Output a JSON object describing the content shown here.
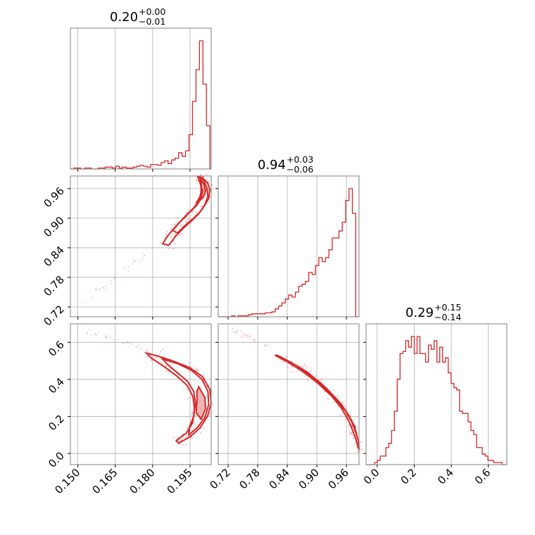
{
  "chart_data": {
    "type": "corner",
    "line_color": "#d62728",
    "grid": true,
    "parameters": [
      {
        "median": "0.20",
        "plus": "+0.00",
        "minus": "−0.01",
        "range": [
          0.147,
          0.2035
        ],
        "ticks": [
          0.15,
          0.165,
          0.18,
          0.195
        ],
        "tick_labels": [
          "0.150",
          "0.165",
          "0.180",
          "0.195"
        ]
      },
      {
        "median": "0.94",
        "plus": "+0.03",
        "minus": "−0.06",
        "range": [
          0.7,
          0.9855
        ],
        "ticks": [
          0.72,
          0.78,
          0.84,
          0.9,
          0.96
        ],
        "tick_labels": [
          "0.72",
          "0.78",
          "0.84",
          "0.90",
          "0.96"
        ]
      },
      {
        "median": "0.29",
        "plus": "+0.15",
        "minus": "−0.14",
        "range": [
          -0.06,
          0.7
        ],
        "ticks": [
          0.0,
          0.2,
          0.4,
          0.6
        ],
        "tick_labels": [
          "0.0",
          "0.2",
          "0.4",
          "0.6"
        ]
      }
    ],
    "histograms": [
      {
        "param": 0,
        "bin_edges": [
          0.147,
          0.1484,
          0.1498,
          0.1512,
          0.1526,
          0.154,
          0.1554,
          0.1568,
          0.1582,
          0.1596,
          0.161,
          0.1624,
          0.1638,
          0.1652,
          0.1666,
          0.168,
          0.1694,
          0.1708,
          0.1722,
          0.1736,
          0.175,
          0.1764,
          0.1778,
          0.1792,
          0.1806,
          0.182,
          0.1834,
          0.1848,
          0.1862,
          0.1876,
          0.189,
          0.1904,
          0.1918,
          0.1932,
          0.1946,
          0.196,
          0.1974,
          0.1988,
          0.2002,
          0.2016,
          0.203,
          0.2035
        ],
        "counts": [
          0,
          1,
          1,
          0,
          1,
          1,
          0,
          0,
          1,
          1,
          2,
          2,
          1,
          3,
          1,
          2,
          1,
          1,
          2,
          3,
          4,
          3,
          2,
          5,
          5,
          4,
          7,
          9,
          6,
          10,
          12,
          18,
          14,
          20,
          38,
          75,
          110,
          142,
          94,
          48,
          0
        ]
      },
      {
        "param": 1,
        "bin_edges": [
          0.7,
          0.7068,
          0.7136,
          0.7204,
          0.7272,
          0.734,
          0.7408,
          0.7476,
          0.7544,
          0.7612,
          0.768,
          0.7748,
          0.7816,
          0.7884,
          0.7952,
          0.802,
          0.8088,
          0.8156,
          0.8224,
          0.8292,
          0.836,
          0.8428,
          0.8496,
          0.8564,
          0.8632,
          0.87,
          0.8768,
          0.8836,
          0.8904,
          0.8972,
          0.904,
          0.9108,
          0.9176,
          0.9244,
          0.9312,
          0.938,
          0.9448,
          0.9516,
          0.9584,
          0.9652,
          0.972,
          0.9788,
          0.9855
        ],
        "counts": [
          0,
          0,
          0,
          0,
          1,
          0,
          1,
          1,
          1,
          2,
          3,
          3,
          3,
          3,
          4,
          4,
          5,
          8,
          11,
          14,
          18,
          22,
          20,
          25,
          31,
          33,
          36,
          45,
          43,
          52,
          60,
          56,
          60,
          68,
          80,
          80,
          87,
          96,
          118,
          130,
          105,
          0
        ]
      },
      {
        "param": 2,
        "bin_edges": [
          -0.06,
          -0.0447,
          -0.0294,
          -0.0141,
          0.0012,
          0.0165,
          0.0318,
          0.0471,
          0.0624,
          0.0777,
          0.093,
          0.1083,
          0.1236,
          0.1389,
          0.1542,
          0.1695,
          0.1848,
          0.2001,
          0.2154,
          0.2307,
          0.246,
          0.2613,
          0.2766,
          0.2919,
          0.3072,
          0.3225,
          0.3378,
          0.3531,
          0.3684,
          0.3837,
          0.399,
          0.4143,
          0.4296,
          0.4449,
          0.4602,
          0.4755,
          0.4908,
          0.5061,
          0.5214,
          0.5367,
          0.552,
          0.5673,
          0.5826,
          0.5979,
          0.6132,
          0.6285,
          0.6438,
          0.6591,
          0.6744,
          0.6897,
          0.7
        ],
        "counts": [
          0,
          0,
          0,
          1,
          2,
          4,
          4,
          8,
          10,
          16,
          25,
          40,
          52,
          53,
          58,
          55,
          60,
          52,
          60,
          52,
          52,
          48,
          56,
          54,
          58,
          48,
          55,
          48,
          50,
          43,
          38,
          36,
          35,
          25,
          24,
          24,
          20,
          16,
          14,
          8,
          8,
          5,
          4,
          2,
          2,
          1,
          1,
          1,
          0,
          0
        ]
      }
    ],
    "contours_2d": [
      {
        "x_param": 0,
        "y_param": 1,
        "levels": [
          [
            [
              0.1865,
              0.845
            ],
            [
              0.189,
              0.862
            ],
            [
              0.192,
              0.878
            ],
            [
              0.195,
              0.892
            ],
            [
              0.198,
              0.906
            ],
            [
              0.2005,
              0.923
            ],
            [
              0.2025,
              0.94
            ],
            [
              0.203,
              0.958
            ],
            [
              0.202,
              0.972
            ],
            [
              0.2,
              0.982
            ],
            [
              0.198,
              0.985
            ],
            [
              0.199,
              0.972
            ],
            [
              0.2,
              0.956
            ],
            [
              0.1995,
              0.94
            ],
            [
              0.1975,
              0.925
            ],
            [
              0.1945,
              0.91
            ],
            [
              0.1915,
              0.895
            ],
            [
              0.1885,
              0.879
            ],
            [
              0.1858,
              0.862
            ],
            [
              0.184,
              0.848
            ]
          ],
          [
            [
              0.19,
              0.87
            ],
            [
              0.193,
              0.885
            ],
            [
              0.196,
              0.898
            ],
            [
              0.199,
              0.912
            ],
            [
              0.201,
              0.928
            ],
            [
              0.2022,
              0.944
            ],
            [
              0.2018,
              0.962
            ],
            [
              0.2005,
              0.976
            ],
            [
              0.199,
              0.982
            ],
            [
              0.1993,
              0.968
            ],
            [
              0.1996,
              0.952
            ],
            [
              0.1988,
              0.936
            ],
            [
              0.1965,
              0.921
            ],
            [
              0.1935,
              0.906
            ],
            [
              0.1905,
              0.89
            ],
            [
              0.188,
              0.875
            ]
          ],
          [
            [
              0.1975,
              0.93
            ],
            [
              0.2003,
              0.942
            ],
            [
              0.2013,
              0.956
            ],
            [
              0.2006,
              0.97
            ],
            [
              0.1995,
              0.976
            ],
            [
              0.1996,
              0.962
            ],
            [
              0.1992,
              0.946
            ]
          ]
        ]
      },
      {
        "x_param": 0,
        "y_param": 2,
        "levels": [
          [
            [
              0.1775,
              0.542
            ],
            [
              0.183,
              0.522
            ],
            [
              0.189,
              0.495
            ],
            [
              0.195,
              0.462
            ],
            [
              0.2,
              0.415
            ],
            [
              0.203,
              0.345
            ],
            [
              0.2035,
              0.27
            ],
            [
              0.202,
              0.2
            ],
            [
              0.199,
              0.138
            ],
            [
              0.195,
              0.09
            ],
            [
              0.1905,
              0.056
            ],
            [
              0.1895,
              0.07
            ],
            [
              0.1935,
              0.11
            ],
            [
              0.196,
              0.165
            ],
            [
              0.1968,
              0.235
            ],
            [
              0.1962,
              0.305
            ],
            [
              0.194,
              0.365
            ],
            [
              0.19,
              0.415
            ],
            [
              0.1845,
              0.47
            ],
            [
              0.1795,
              0.515
            ]
          ],
          [
            [
              0.184,
              0.51
            ],
            [
              0.19,
              0.485
            ],
            [
              0.1955,
              0.45
            ],
            [
              0.1998,
              0.4
            ],
            [
              0.2022,
              0.335
            ],
            [
              0.2025,
              0.265
            ],
            [
              0.201,
              0.195
            ],
            [
              0.198,
              0.14
            ],
            [
              0.1945,
              0.1
            ],
            [
              0.1948,
              0.145
            ],
            [
              0.1965,
              0.2
            ],
            [
              0.1972,
              0.27
            ],
            [
              0.1965,
              0.335
            ],
            [
              0.194,
              0.39
            ],
            [
              0.19,
              0.435
            ],
            [
              0.186,
              0.48
            ]
          ],
          [
            [
              0.1985,
              0.36
            ],
            [
              0.201,
              0.3
            ],
            [
              0.2012,
              0.24
            ],
            [
              0.1995,
              0.185
            ],
            [
              0.1975,
              0.22
            ],
            [
              0.1978,
              0.29
            ],
            [
              0.1978,
              0.335
            ]
          ]
        ]
      },
      {
        "x_param": 1,
        "y_param": 2,
        "levels": [
          [
            [
              0.82,
              0.53
            ],
            [
              0.85,
              0.488
            ],
            [
              0.88,
              0.44
            ],
            [
              0.91,
              0.375
            ],
            [
              0.94,
              0.295
            ],
            [
              0.96,
              0.225
            ],
            [
              0.975,
              0.15
            ],
            [
              0.985,
              0.06
            ],
            [
              0.9855,
              0.02
            ],
            [
              0.979,
              0.08
            ],
            [
              0.966,
              0.17
            ],
            [
              0.95,
              0.245
            ],
            [
              0.93,
              0.31
            ],
            [
              0.9,
              0.385
            ],
            [
              0.87,
              0.445
            ],
            [
              0.84,
              0.495
            ],
            [
              0.815,
              0.53
            ]
          ],
          [
            [
              0.86,
              0.472
            ],
            [
              0.89,
              0.418
            ],
            [
              0.92,
              0.35
            ],
            [
              0.95,
              0.265
            ],
            [
              0.97,
              0.18
            ],
            [
              0.982,
              0.09
            ],
            [
              0.976,
              0.15
            ],
            [
              0.958,
              0.23
            ],
            [
              0.932,
              0.315
            ],
            [
              0.9,
              0.39
            ],
            [
              0.87,
              0.445
            ]
          ],
          [
            [
              0.935,
              0.3
            ],
            [
              0.955,
              0.245
            ],
            [
              0.972,
              0.17
            ],
            [
              0.965,
              0.205
            ],
            [
              0.945,
              0.275
            ]
          ]
        ]
      }
    ]
  }
}
